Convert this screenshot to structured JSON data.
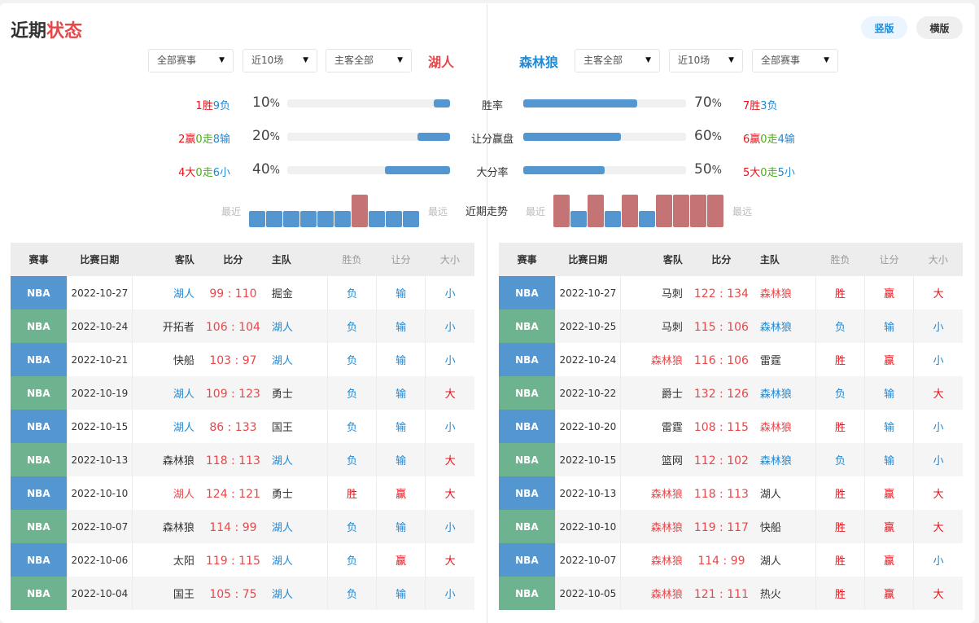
{
  "title": {
    "part1": "近期",
    "part2": "状态"
  },
  "buttons": {
    "vertical": "竖版",
    "horizontal": "横版"
  },
  "left": {
    "team": "湖人",
    "filters": [
      "全部赛事",
      "近10场",
      "主客全部"
    ],
    "stats": [
      {
        "w": "1",
        "wl": "胜",
        "m": "",
        "ml": "",
        "l": "9",
        "ll": "负",
        "pct": 10
      },
      {
        "w": "2",
        "wl": "赢",
        "m": "0",
        "ml": "走",
        "l": "8",
        "ll": "输",
        "pct": 20
      },
      {
        "w": "4",
        "wl": "大",
        "m": "0",
        "ml": "走",
        "l": "6",
        "ll": "小",
        "pct": 40
      }
    ],
    "trend": [
      "L",
      "L",
      "L",
      "L",
      "L",
      "L",
      "W",
      "L",
      "L",
      "L"
    ]
  },
  "right": {
    "team": "森林狼",
    "filters": [
      "主客全部",
      "近10场",
      "全部赛事"
    ],
    "stats": [
      {
        "w": "7",
        "wl": "胜",
        "m": "",
        "ml": "",
        "l": "3",
        "ll": "负",
        "pct": 70
      },
      {
        "w": "6",
        "wl": "赢",
        "m": "0",
        "ml": "走",
        "l": "4",
        "ll": "输",
        "pct": 60
      },
      {
        "w": "5",
        "wl": "大",
        "m": "0",
        "ml": "走",
        "l": "5",
        "ll": "小",
        "pct": 50
      }
    ],
    "trend": [
      "W",
      "L",
      "W",
      "L",
      "W",
      "L",
      "W",
      "W",
      "W",
      "W"
    ]
  },
  "stat_labels": [
    "胜率",
    "让分赢盘",
    "大分率"
  ],
  "trend_label": "近期走势",
  "recent": "最近",
  "far": "最远",
  "percent_sign": "%",
  "colors": {
    "win": "#c47474",
    "loss": "#5497d0",
    "nba_blue": "#5497d0",
    "nba_green": "#6db38f"
  },
  "table_headers": [
    "赛事",
    "比赛日期",
    "客队",
    "比分",
    "主队",
    "胜负",
    "让分",
    "大小"
  ],
  "left_rows": [
    [
      "NBA",
      "2022-10-27",
      "湖人",
      "99",
      "110",
      "掘金",
      "away",
      "负",
      "输",
      "小"
    ],
    [
      "NBA",
      "2022-10-24",
      "开拓者",
      "106",
      "104",
      "湖人",
      "home",
      "负",
      "输",
      "小"
    ],
    [
      "NBA",
      "2022-10-21",
      "快船",
      "103",
      "97",
      "湖人",
      "home",
      "负",
      "输",
      "小"
    ],
    [
      "NBA",
      "2022-10-19",
      "湖人",
      "109",
      "123",
      "勇士",
      "away",
      "负",
      "输",
      "大"
    ],
    [
      "NBA",
      "2022-10-15",
      "湖人",
      "86",
      "133",
      "国王",
      "away",
      "负",
      "输",
      "小"
    ],
    [
      "NBA",
      "2022-10-13",
      "森林狼",
      "118",
      "113",
      "湖人",
      "home",
      "负",
      "输",
      "大"
    ],
    [
      "NBA",
      "2022-10-10",
      "湖人",
      "124",
      "121",
      "勇士",
      "away",
      "胜",
      "赢",
      "大"
    ],
    [
      "NBA",
      "2022-10-07",
      "森林狼",
      "114",
      "99",
      "湖人",
      "home",
      "负",
      "输",
      "小"
    ],
    [
      "NBA",
      "2022-10-06",
      "太阳",
      "119",
      "115",
      "湖人",
      "home",
      "负",
      "赢",
      "大"
    ],
    [
      "NBA",
      "2022-10-04",
      "国王",
      "105",
      "75",
      "湖人",
      "home",
      "负",
      "输",
      "小"
    ]
  ],
  "right_rows": [
    [
      "NBA",
      "2022-10-27",
      "马刺",
      "122",
      "134",
      "森林狼",
      "home",
      "胜",
      "赢",
      "大"
    ],
    [
      "NBA",
      "2022-10-25",
      "马刺",
      "115",
      "106",
      "森林狼",
      "home",
      "负",
      "输",
      "小"
    ],
    [
      "NBA",
      "2022-10-24",
      "森林狼",
      "116",
      "106",
      "雷霆",
      "away",
      "胜",
      "赢",
      "小"
    ],
    [
      "NBA",
      "2022-10-22",
      "爵士",
      "132",
      "126",
      "森林狼",
      "home",
      "负",
      "输",
      "大"
    ],
    [
      "NBA",
      "2022-10-20",
      "雷霆",
      "108",
      "115",
      "森林狼",
      "home",
      "胜",
      "输",
      "小"
    ],
    [
      "NBA",
      "2022-10-15",
      "篮网",
      "112",
      "102",
      "森林狼",
      "home",
      "负",
      "输",
      "小"
    ],
    [
      "NBA",
      "2022-10-13",
      "森林狼",
      "118",
      "113",
      "湖人",
      "away",
      "胜",
      "赢",
      "大"
    ],
    [
      "NBA",
      "2022-10-10",
      "森林狼",
      "119",
      "117",
      "快船",
      "away",
      "胜",
      "赢",
      "大"
    ],
    [
      "NBA",
      "2022-10-07",
      "森林狼",
      "114",
      "99",
      "湖人",
      "away",
      "胜",
      "赢",
      "小"
    ],
    [
      "NBA",
      "2022-10-05",
      "森林狼",
      "121",
      "111",
      "热火",
      "away",
      "胜",
      "赢",
      "大"
    ]
  ]
}
